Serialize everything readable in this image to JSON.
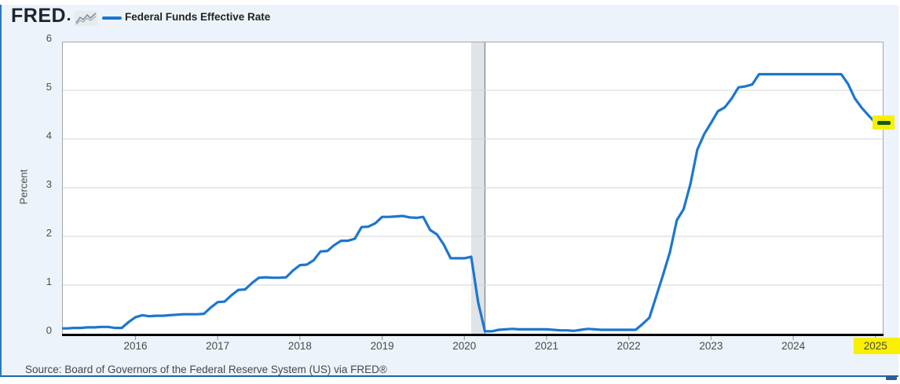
{
  "header": {
    "logo_text": "FRED",
    "legend": {
      "label": "Federal Funds Effective Rate",
      "swatch_color": "#1c76d1"
    }
  },
  "footer": {
    "source_text": "Source: Board of Governors of the Federal Reserve System (US) via FRED®"
  },
  "colors": {
    "line": "#1c76d1",
    "card_bg": "#ecf3fa",
    "plot_bg": "#ffffff",
    "grid": "#d6d6d6",
    "plot_border": "#a7a7a7",
    "axis": "#000000",
    "tick": "#9aa0a6",
    "recession_band": "#e0e3e7",
    "recession_edge": "#8e959b",
    "highlight_yellow": "#f8f000",
    "highlight_green": "#17591c",
    "card_left_border": "#2c79c2",
    "card_bottom_border": "#1767ae",
    "border_accent": "#2a5d9b",
    "tick_text": "#4a4a4a"
  },
  "chart_data": {
    "type": "line",
    "title": "Federal Funds Effective Rate",
    "ylabel": "Percent",
    "ylim": [
      0,
      6
    ],
    "ytick_labels": [
      "0",
      "1",
      "2",
      "3",
      "4",
      "5",
      "6"
    ],
    "xtick_labels": [
      "2016",
      "2017",
      "2018",
      "2019",
      "2020",
      "2021",
      "2022",
      "2023",
      "2024",
      "2025"
    ],
    "x_start": "2015-01",
    "x_end": "2025-02",
    "frequency": "monthly",
    "grid": "horizontal",
    "legend_position": "top-left",
    "series": [
      {
        "name": "Federal Funds Effective Rate",
        "color": "#1c76d1",
        "values": [
          0.11,
          0.11,
          0.11,
          0.12,
          0.12,
          0.13,
          0.13,
          0.14,
          0.14,
          0.12,
          0.12,
          0.24,
          0.34,
          0.38,
          0.36,
          0.37,
          0.37,
          0.38,
          0.39,
          0.4,
          0.4,
          0.4,
          0.41,
          0.54,
          0.65,
          0.66,
          0.79,
          0.9,
          0.91,
          1.04,
          1.15,
          1.16,
          1.15,
          1.15,
          1.16,
          1.3,
          1.41,
          1.42,
          1.51,
          1.69,
          1.7,
          1.82,
          1.91,
          1.91,
          1.95,
          2.19,
          2.2,
          2.27,
          2.4,
          2.4,
          2.41,
          2.42,
          2.39,
          2.38,
          2.4,
          2.13,
          2.04,
          1.83,
          1.55,
          1.55,
          1.55,
          1.58,
          0.65,
          0.05,
          0.05,
          0.08,
          0.09,
          0.1,
          0.09,
          0.09,
          0.09,
          0.09,
          0.09,
          0.08,
          0.07,
          0.07,
          0.06,
          0.08,
          0.1,
          0.09,
          0.08,
          0.08,
          0.08,
          0.08,
          0.08,
          0.08,
          0.2,
          0.33,
          0.77,
          1.21,
          1.68,
          2.33,
          2.56,
          3.08,
          3.78,
          4.1,
          4.33,
          4.57,
          4.65,
          4.83,
          5.06,
          5.08,
          5.12,
          5.33,
          5.33,
          5.33,
          5.33,
          5.33,
          5.33,
          5.33,
          5.33,
          5.33,
          5.33,
          5.33,
          5.33,
          5.33,
          5.13,
          4.83,
          4.64,
          4.48,
          4.33,
          4.33
        ]
      }
    ],
    "recession_shading": {
      "from": "2020-02",
      "to": "2020-04"
    },
    "annotations": [
      {
        "type": "highlight",
        "target": "line-end",
        "color": "#f8f000",
        "marker_color": "#17591c"
      },
      {
        "type": "highlight",
        "target": "x-label-2025",
        "color": "#f8f000"
      }
    ]
  }
}
